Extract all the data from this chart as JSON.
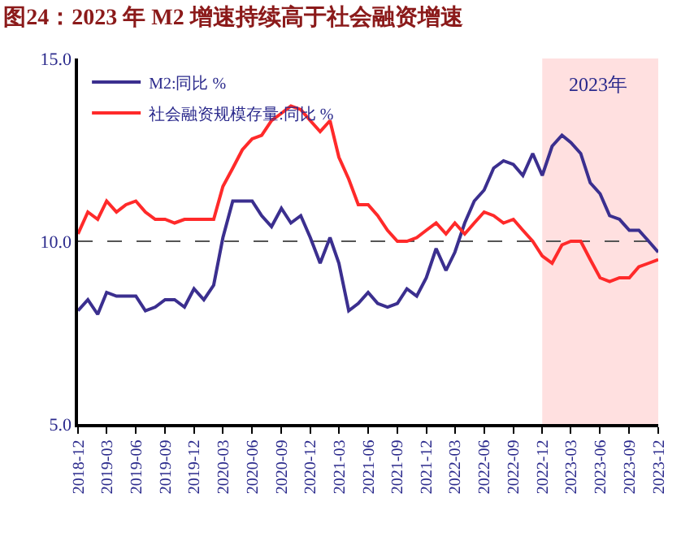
{
  "chart_data": {
    "type": "line",
    "title": "图24：2023 年 M2 增速持续高于社会融资增速",
    "x": [
      "2018-12",
      "2019-01",
      "2019-02",
      "2019-03",
      "2019-04",
      "2019-05",
      "2019-06",
      "2019-07",
      "2019-08",
      "2019-09",
      "2019-10",
      "2019-11",
      "2019-12",
      "2020-01",
      "2020-02",
      "2020-03",
      "2020-04",
      "2020-05",
      "2020-06",
      "2020-07",
      "2020-08",
      "2020-09",
      "2020-10",
      "2020-11",
      "2020-12",
      "2021-01",
      "2021-02",
      "2021-03",
      "2021-04",
      "2021-05",
      "2021-06",
      "2021-07",
      "2021-08",
      "2021-09",
      "2021-10",
      "2021-11",
      "2021-12",
      "2022-01",
      "2022-02",
      "2022-03",
      "2022-04",
      "2022-05",
      "2022-06",
      "2022-07",
      "2022-08",
      "2022-09",
      "2022-10",
      "2022-11",
      "2022-12",
      "2023-01",
      "2023-02",
      "2023-03",
      "2023-04",
      "2023-05",
      "2023-06",
      "2023-07",
      "2023-08",
      "2023-09",
      "2023-10",
      "2023-11",
      "2023-12"
    ],
    "series": [
      {
        "name": "M2:同比 %",
        "color": "#3b2f8f",
        "values": [
          8.1,
          8.4,
          8.0,
          8.6,
          8.5,
          8.5,
          8.5,
          8.1,
          8.2,
          8.4,
          8.4,
          8.2,
          8.7,
          8.4,
          8.8,
          10.1,
          11.1,
          11.1,
          11.1,
          10.7,
          10.4,
          10.9,
          10.5,
          10.7,
          10.1,
          9.4,
          10.1,
          9.4,
          8.1,
          8.3,
          8.6,
          8.3,
          8.2,
          8.3,
          8.7,
          8.5,
          9.0,
          9.8,
          9.2,
          9.7,
          10.5,
          11.1,
          11.4,
          12.0,
          12.2,
          12.1,
          11.8,
          12.4,
          11.8,
          12.6,
          12.9,
          12.7,
          12.4,
          11.6,
          11.3,
          10.7,
          10.6,
          10.3,
          10.3,
          10.0,
          9.7
        ]
      },
      {
        "name": "社会融资规模存量:同比 %",
        "color": "#ff2a2a",
        "values": [
          10.2,
          10.8,
          10.6,
          11.1,
          10.8,
          11.0,
          11.1,
          10.8,
          10.6,
          10.6,
          10.5,
          10.6,
          10.6,
          10.6,
          10.6,
          11.5,
          12.0,
          12.5,
          12.8,
          12.9,
          13.3,
          13.5,
          13.7,
          13.6,
          13.3,
          13.0,
          13.3,
          12.3,
          11.7,
          11.0,
          11.0,
          10.7,
          10.3,
          10.0,
          10.0,
          10.1,
          10.3,
          10.5,
          10.2,
          10.5,
          10.2,
          10.5,
          10.8,
          10.7,
          10.5,
          10.6,
          10.3,
          10.0,
          9.6,
          9.4,
          9.9,
          10.0,
          10.0,
          9.5,
          9.0,
          8.9,
          9.0,
          9.0,
          9.3,
          9.4,
          9.5
        ]
      }
    ],
    "xlim": [
      "2018-12",
      "2023-12"
    ],
    "xticks": [
      {
        "value": "2018-12",
        "label": "2018-12"
      },
      {
        "value": "2019-03",
        "label": "2019-03"
      },
      {
        "value": "2019-06",
        "label": "2019-06"
      },
      {
        "value": "2019-09",
        "label": "2019-09"
      },
      {
        "value": "2019-12",
        "label": "2019-12"
      },
      {
        "value": "2020-03",
        "label": "2020-03"
      },
      {
        "value": "2020-06",
        "label": "2020-06"
      },
      {
        "value": "2020-09",
        "label": "2020-09"
      },
      {
        "value": "2020-12",
        "label": "2020-12"
      },
      {
        "value": "2021-03",
        "label": "2021-03"
      },
      {
        "value": "2021-06",
        "label": "2021-06"
      },
      {
        "value": "2021-09",
        "label": "2021-09"
      },
      {
        "value": "2021-12",
        "label": "2021-12"
      },
      {
        "value": "2022-03",
        "label": "2022-03"
      },
      {
        "value": "2022-06",
        "label": "2022-06"
      },
      {
        "value": "2022-09",
        "label": "2022-09"
      },
      {
        "value": "2022-12",
        "label": "2022-12"
      },
      {
        "value": "2023-03",
        "label": "2023-03"
      },
      {
        "value": "2023-06",
        "label": "2023-06"
      },
      {
        "value": "2023-09",
        "label": "2023-09"
      },
      {
        "value": "2023-12",
        "label": "2023-12"
      }
    ],
    "ylim": [
      5,
      15
    ],
    "yticks": [
      {
        "value": 5,
        "label": "5.0"
      },
      {
        "value": 10,
        "label": "10.0"
      },
      {
        "value": 15,
        "label": "15.0"
      }
    ],
    "grid": "y",
    "line_style": "solid",
    "marker": "none",
    "legend": "top left",
    "bands": [
      {
        "axis": "x",
        "from": "2022-12",
        "to": "2023-12",
        "label": "2023年",
        "color": "#ffe0e0"
      }
    ]
  }
}
